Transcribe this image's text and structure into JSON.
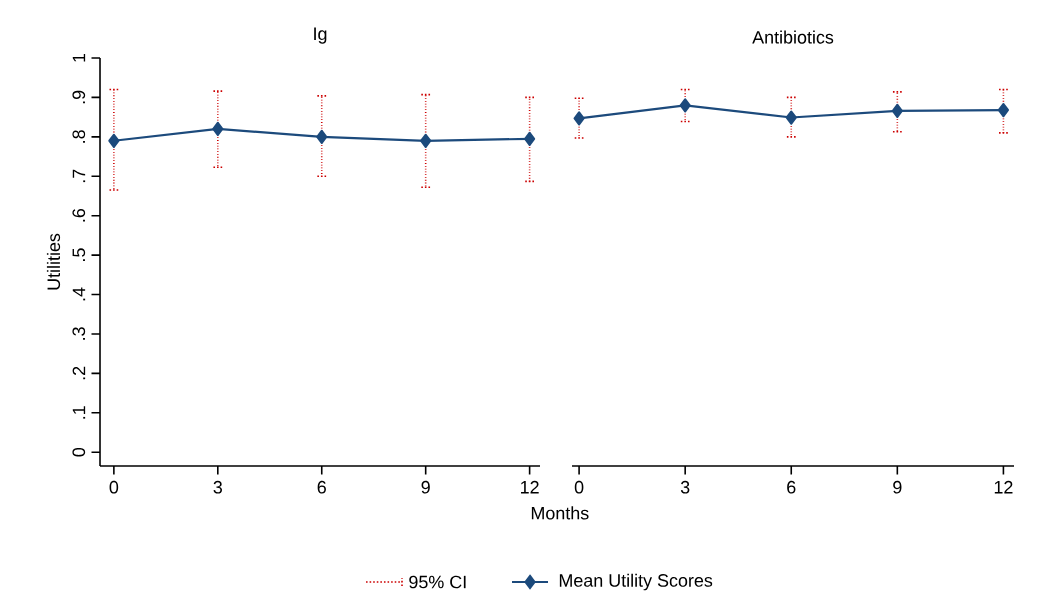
{
  "chart_data": [
    {
      "type": "line",
      "title": "Ig",
      "xlabel": "Months",
      "ylabel": "Utilities",
      "x": [
        0,
        3,
        6,
        9,
        12
      ],
      "series": [
        {
          "name": "Mean Utility Scores",
          "color": "#1c4a7c",
          "values": [
            0.79,
            0.82,
            0.8,
            0.79,
            0.795
          ],
          "errors": [
            [
              0.665,
              0.92
            ],
            [
              0.723,
              0.916
            ],
            [
              0.7,
              0.904
            ],
            [
              0.672,
              0.907
            ],
            [
              0.687,
              0.9
            ]
          ]
        }
      ],
      "annotations": [
        "95% CI"
      ],
      "legend": "bottom",
      "marker": "diamond",
      "line_style": "solid",
      "xlim": [
        -0.4,
        12.3
      ],
      "xticks": [
        0,
        3,
        6,
        9,
        12
      ],
      "ylim": [
        -0.035,
        1
      ],
      "yticks": [
        0,
        {
          "value": 0.1,
          "label": ".1"
        },
        {
          "value": 0.2,
          "label": ".2"
        },
        {
          "value": 0.3,
          "label": ".3"
        },
        {
          "value": 0.4,
          "label": ".4"
        },
        {
          "value": 0.5,
          "label": ".5"
        },
        {
          "value": 0.6,
          "label": ".6"
        },
        {
          "value": 0.7,
          "label": ".7"
        },
        {
          "value": 0.8,
          "label": ".8"
        },
        {
          "value": 0.9,
          "label": ".9"
        },
        1
      ]
    },
    {
      "type": "line",
      "title": "Antibiotics",
      "x": [
        0,
        3,
        6,
        9,
        12
      ],
      "series": [
        {
          "color": "#1c4a7c",
          "values": [
            0.847,
            0.88,
            0.849,
            0.866,
            0.868
          ],
          "errors": [
            [
              0.797,
              0.898
            ],
            [
              0.839,
              0.92
            ],
            [
              0.8,
              0.9
            ],
            [
              0.813,
              0.914
            ],
            [
              0.81,
              0.92
            ]
          ]
        }
      ],
      "marker": "diamond",
      "line_style": "solid",
      "tick_labels": "x",
      "xlim": [
        -0.2,
        12.3
      ],
      "xticks": [
        0,
        3,
        6,
        9,
        12
      ],
      "ylim": [
        -0.035,
        1
      ]
    }
  ]
}
